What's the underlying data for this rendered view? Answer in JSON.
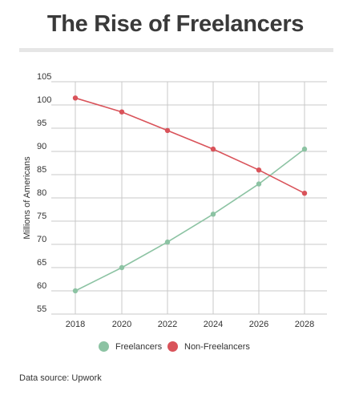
{
  "chart_data": {
    "type": "line",
    "title": "The Rise of Freelancers",
    "ylabel": "Millions of Americans",
    "xlabel": "",
    "x": [
      "2018",
      "2020",
      "2022",
      "2024",
      "2026",
      "2028"
    ],
    "y_ticks": [
      "105",
      "100",
      "95",
      "90",
      "85",
      "80",
      "75",
      "70",
      "65",
      "60",
      "55"
    ],
    "ylim": [
      55,
      105
    ],
    "grid": true,
    "legend_position": "bottom",
    "series": [
      {
        "name": "Freelancers",
        "color": "#8cc3a3",
        "values": [
          60,
          65,
          70.5,
          76.5,
          83,
          90.5
        ]
      },
      {
        "name": "Non-Freelancers",
        "color": "#d9535a",
        "values": [
          101.5,
          98.5,
          94.5,
          90.5,
          86,
          81
        ]
      }
    ]
  },
  "footer": {
    "source": "Data source: Upwork"
  }
}
